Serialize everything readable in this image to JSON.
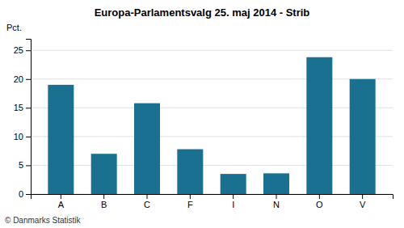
{
  "chart_data": {
    "type": "bar",
    "title": "Europa-Parlamentsvalg 25. maj 2014 - Strib",
    "categories": [
      "A",
      "B",
      "C",
      "F",
      "I",
      "N",
      "O",
      "V"
    ],
    "values": [
      19.0,
      7.0,
      15.8,
      7.8,
      3.5,
      3.6,
      23.8,
      20.0
    ],
    "color": "#1a7090",
    "ylabel": "Pct.",
    "ylim": [
      0,
      27
    ],
    "yticks": [
      0,
      5,
      10,
      15,
      20,
      25
    ],
    "grid": true,
    "annotations": [
      "© Danmarks Statistik"
    ]
  }
}
